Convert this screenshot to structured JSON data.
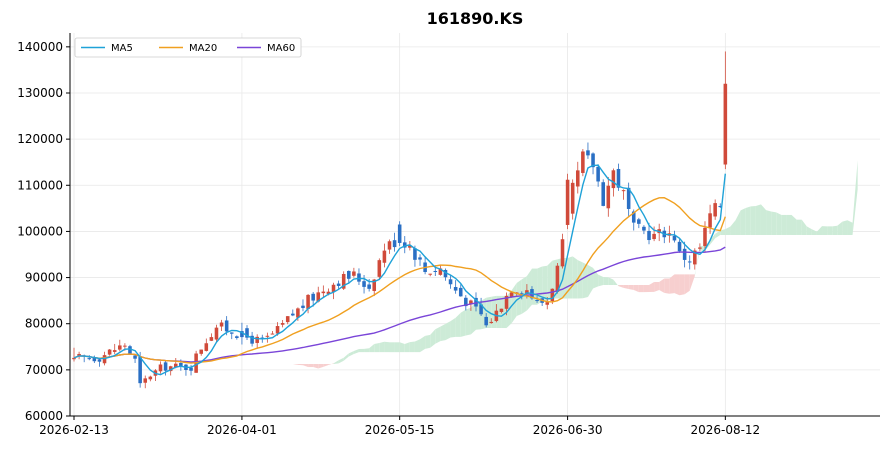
{
  "title": "161890.KS",
  "colors": {
    "up": "#d04a3a",
    "down": "#2a6fc4",
    "ma5": "#1fa2d8",
    "ma20": "#f0a020",
    "ma60": "#7a45d8",
    "cloud_bull": "#cdebd7",
    "cloud_bear": "#f7cfcf",
    "grid": "#e8e8e8"
  },
  "chart_data": {
    "type": "candlestick",
    "title": "161890.KS",
    "x_tick_labels": [
      "2026-02-13",
      "2026-04-01",
      "2026-05-15",
      "2026-06-30",
      "2026-08-12"
    ],
    "y_tick_labels": [
      "60000",
      "70000",
      "80000",
      "90000",
      "100000",
      "110000",
      "120000",
      "130000",
      "140000"
    ],
    "ylim": [
      60000,
      143000
    ],
    "grid": true,
    "legend": {
      "placement": "top-left",
      "entries": [
        "MA5",
        "MA20",
        "MA60"
      ]
    },
    "x_ticks_index": [
      0,
      33,
      64,
      97,
      128
    ],
    "num_bars": 129,
    "x_extent_bars": 158,
    "ohlc_sample": [
      {
        "date": "2026-02-13",
        "open": 72300,
        "high": 74800,
        "low": 71800,
        "close": 72600
      },
      {
        "date": "2026-04-01",
        "open": 78400,
        "high": 80200,
        "low": 75500,
        "close": 77100
      },
      {
        "date": "2026-05-15",
        "open": 101500,
        "high": 102200,
        "low": 96800,
        "close": 97500
      },
      {
        "date": "2026-06-30",
        "open": 101400,
        "high": 112500,
        "low": 100500,
        "close": 111200
      },
      {
        "date": "2026-08-12",
        "open": 114500,
        "high": 139000,
        "low": 113500,
        "close": 132000
      }
    ],
    "ma5_last": 112500,
    "ma20_last": 103200,
    "ma60_last": 96600
  }
}
